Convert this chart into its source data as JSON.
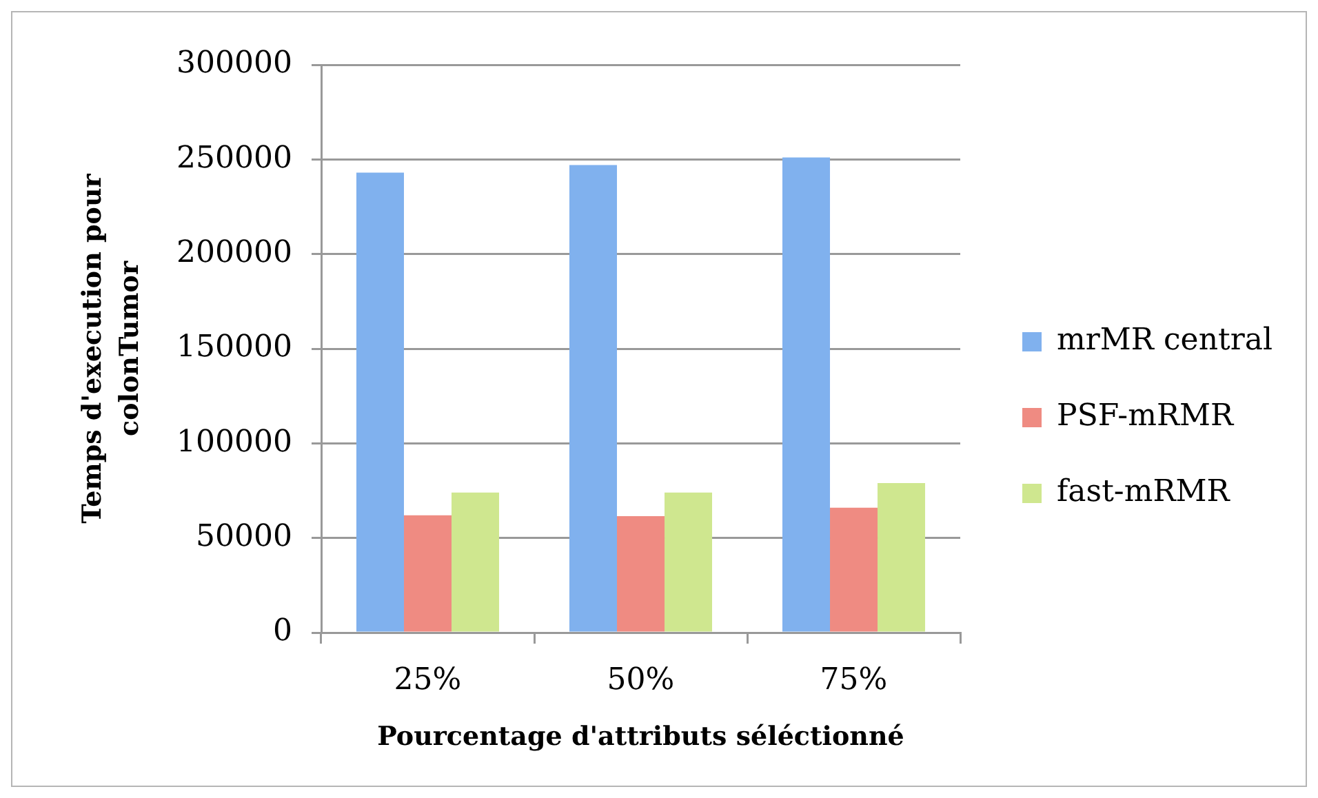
{
  "chart_data": {
    "type": "bar",
    "categories": [
      "25%",
      "50%",
      "75%"
    ],
    "series": [
      {
        "name": "mrMR central",
        "color": "#80b1ee",
        "values": [
          243000,
          247000,
          251000
        ]
      },
      {
        "name": "PSF-mRMR",
        "color": "#ef8b82",
        "values": [
          62000,
          61500,
          66000
        ]
      },
      {
        "name": "fast-mRMR",
        "color": "#cfe78f",
        "values": [
          74000,
          74000,
          79000
        ]
      }
    ],
    "ylim": [
      0,
      300000
    ],
    "yticks": [
      0,
      50000,
      100000,
      150000,
      200000,
      250000,
      300000
    ],
    "xlabel": "Pourcentage d'attributs séléctionné",
    "ylabel": "Temps d'execution pour colonTumor",
    "grid": "y",
    "legend": "right"
  }
}
